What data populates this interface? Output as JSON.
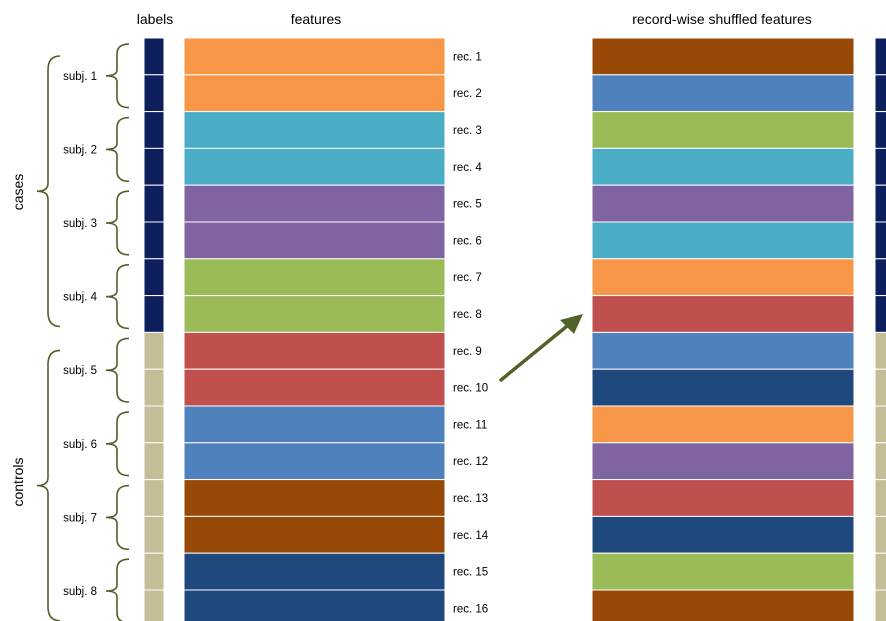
{
  "headers": {
    "labels": "labels",
    "features": "features",
    "shuffled": "record-wise shuffled features"
  },
  "groups": [
    {
      "name": "cases",
      "label_color": "#0d1f5c",
      "subjects": [
        "subj. 1",
        "subj. 2",
        "subj. 3",
        "subj. 4"
      ]
    },
    {
      "name": "controls",
      "label_color": "#c4bd97",
      "subjects": [
        "subj. 5",
        "subj. 6",
        "subj. 7",
        "subj. 8"
      ]
    }
  ],
  "palette": {
    "orange": "#f79646",
    "teal": "#4bacc6",
    "purple": "#8064a2",
    "green": "#9bbb59",
    "red": "#c0504d",
    "blue": "#4f81bd",
    "brown": "#984807",
    "navy": "#1f497d"
  },
  "records": [
    {
      "label": "rec. 1",
      "color": "orange"
    },
    {
      "label": "rec. 2",
      "color": "orange"
    },
    {
      "label": "rec. 3",
      "color": "teal"
    },
    {
      "label": "rec. 4",
      "color": "teal"
    },
    {
      "label": "rec. 5",
      "color": "purple"
    },
    {
      "label": "rec. 6",
      "color": "purple"
    },
    {
      "label": "rec. 7",
      "color": "green"
    },
    {
      "label": "rec. 8",
      "color": "green"
    },
    {
      "label": "rec. 9",
      "color": "red"
    },
    {
      "label": "rec. 10",
      "color": "red"
    },
    {
      "label": "rec. 11",
      "color": "blue"
    },
    {
      "label": "rec. 12",
      "color": "blue"
    },
    {
      "label": "rec. 13",
      "color": "brown"
    },
    {
      "label": "rec. 14",
      "color": "brown"
    },
    {
      "label": "rec. 15",
      "color": "navy"
    },
    {
      "label": "rec. 16",
      "color": "navy"
    }
  ],
  "shuffled_colors": [
    "brown",
    "blue",
    "green",
    "teal",
    "purple",
    "teal",
    "orange",
    "red",
    "blue",
    "navy",
    "orange",
    "purple",
    "red",
    "navy",
    "green",
    "brown"
  ],
  "arrow_color": "#4f6228",
  "brace_color": "#4f6228"
}
